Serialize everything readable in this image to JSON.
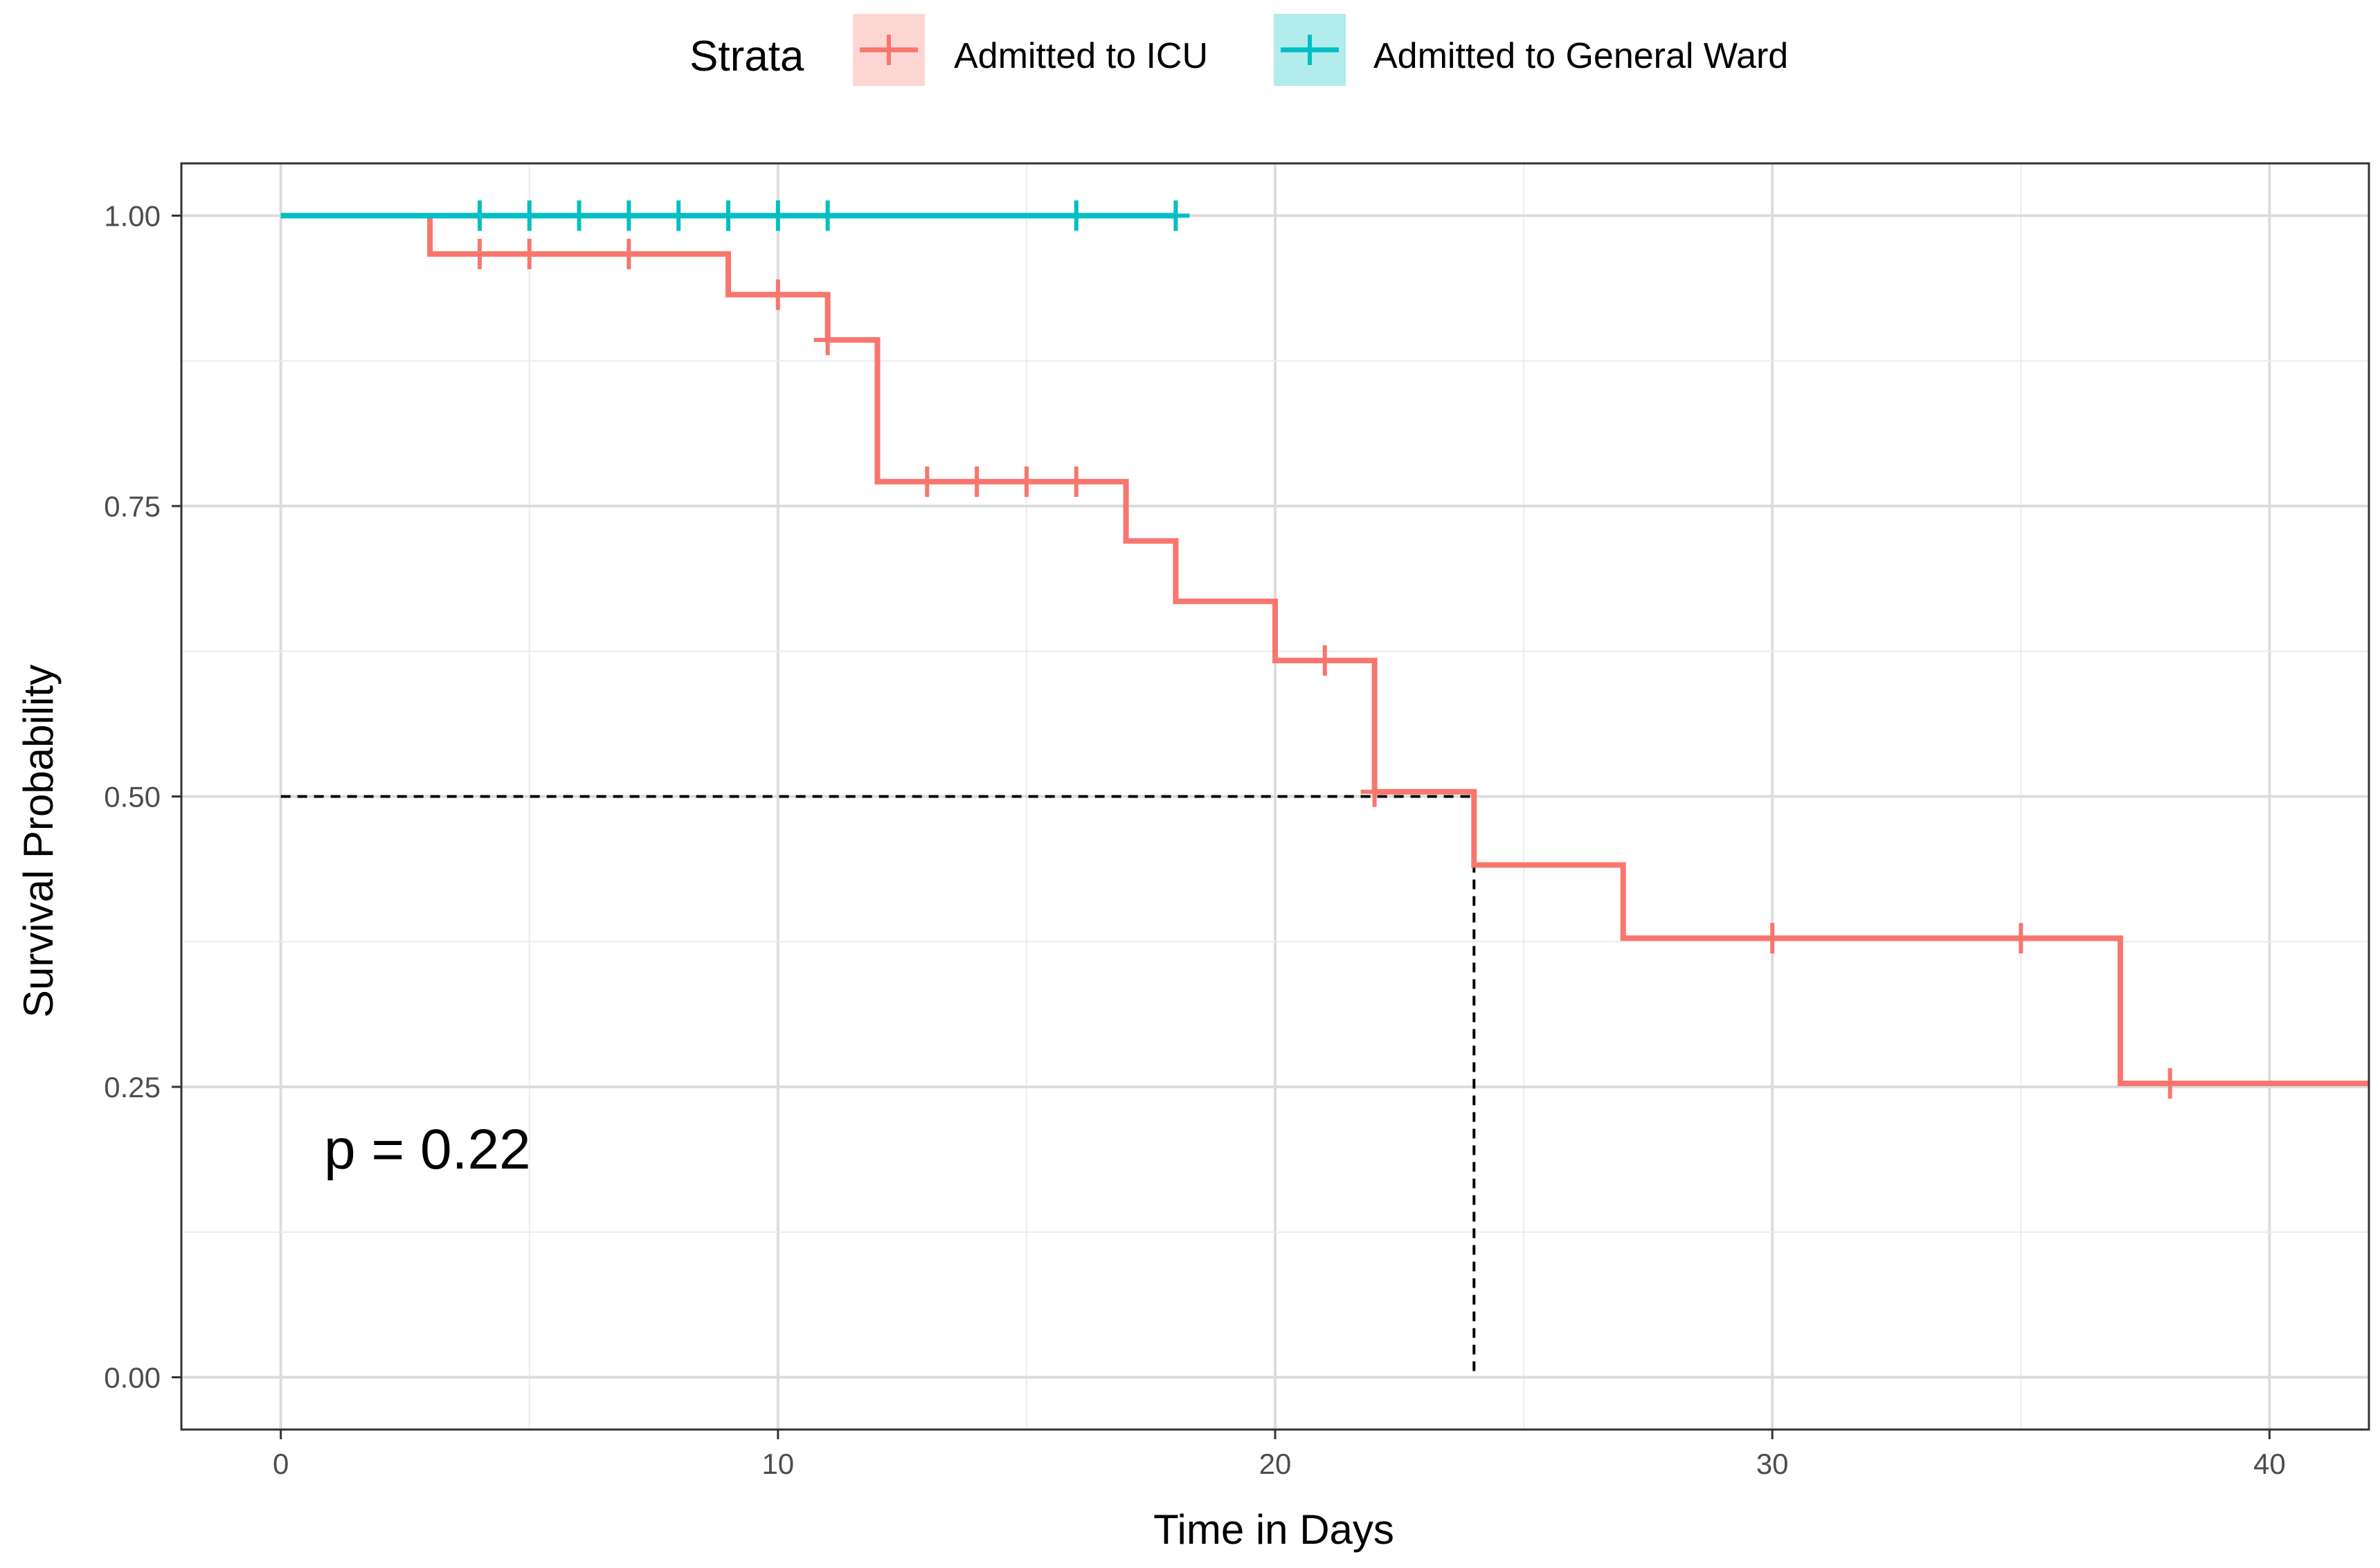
{
  "chart_data": {
    "type": "line",
    "subtype": "kaplan-meier",
    "xlabel": "Time in Days",
    "ylabel": "Survival Probability",
    "xlim": [
      -2,
      42
    ],
    "ylim": [
      -0.045,
      1.045
    ],
    "x_ticks": [
      0,
      10,
      20,
      30,
      40
    ],
    "x_tick_labels": [
      "0",
      "10",
      "20",
      "30",
      "40"
    ],
    "y_ticks": [
      0,
      0.25,
      0.5,
      0.75,
      1.0
    ],
    "y_tick_labels": [
      "0.00",
      "0.25",
      "0.50",
      "0.75",
      "1.00"
    ],
    "grid": true,
    "legend": {
      "title": "Strata",
      "position": "top"
    },
    "annotation": "p = 0.22",
    "median_line": {
      "x": 24,
      "y": 0.5
    },
    "series": [
      {
        "name": "Admitted to ICU",
        "color": "#F8766D",
        "steps": [
          {
            "x": 0,
            "y": 1.0
          },
          {
            "x": 3,
            "y": 0.967
          },
          {
            "x": 9,
            "y": 0.932
          },
          {
            "x": 11,
            "y": 0.893
          },
          {
            "x": 12,
            "y": 0.771
          },
          {
            "x": 17,
            "y": 0.72
          },
          {
            "x": 18,
            "y": 0.668
          },
          {
            "x": 20,
            "y": 0.617
          },
          {
            "x": 22,
            "y": 0.504
          },
          {
            "x": 24,
            "y": 0.441
          },
          {
            "x": 27,
            "y": 0.378
          },
          {
            "x": 37,
            "y": 0.253
          },
          {
            "x": 42,
            "y": 0.253
          }
        ],
        "censored": [
          {
            "x": 4,
            "y": 0.967
          },
          {
            "x": 5,
            "y": 0.967
          },
          {
            "x": 7,
            "y": 0.967
          },
          {
            "x": 10,
            "y": 0.932
          },
          {
            "x": 11,
            "y": 0.893
          },
          {
            "x": 13,
            "y": 0.771
          },
          {
            "x": 14,
            "y": 0.771
          },
          {
            "x": 15,
            "y": 0.771
          },
          {
            "x": 16,
            "y": 0.771
          },
          {
            "x": 21,
            "y": 0.617
          },
          {
            "x": 22,
            "y": 0.504
          },
          {
            "x": 30,
            "y": 0.378
          },
          {
            "x": 35,
            "y": 0.378
          },
          {
            "x": 38,
            "y": 0.253
          }
        ]
      },
      {
        "name": "Admitted to General Ward",
        "color": "#00BFC4",
        "steps": [
          {
            "x": 0,
            "y": 1.0
          },
          {
            "x": 18,
            "y": 1.0
          }
        ],
        "censored": [
          {
            "x": 4,
            "y": 1.0
          },
          {
            "x": 5,
            "y": 1.0
          },
          {
            "x": 6,
            "y": 1.0
          },
          {
            "x": 7,
            "y": 1.0
          },
          {
            "x": 8,
            "y": 1.0
          },
          {
            "x": 9,
            "y": 1.0
          },
          {
            "x": 10,
            "y": 1.0
          },
          {
            "x": 11,
            "y": 1.0
          },
          {
            "x": 16,
            "y": 1.0
          },
          {
            "x": 18,
            "y": 1.0
          }
        ]
      }
    ]
  }
}
